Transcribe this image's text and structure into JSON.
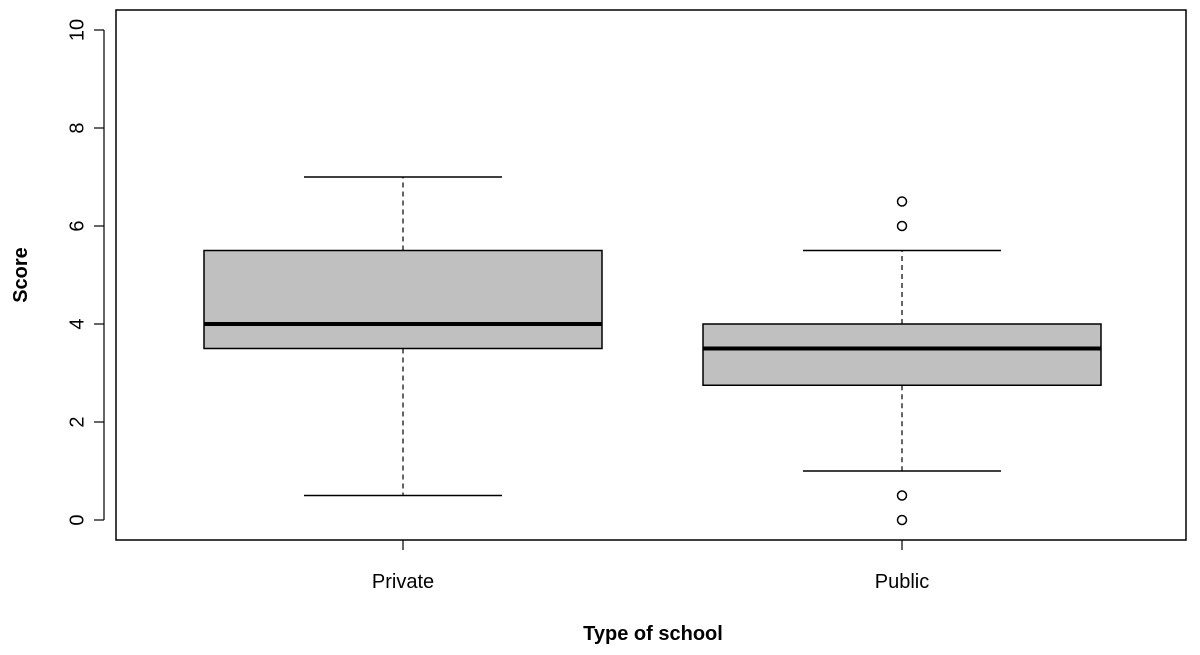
{
  "chart_data": {
    "type": "boxplot",
    "title": "",
    "xlabel": "Type of school",
    "ylabel": "Score",
    "ylim": [
      0,
      10
    ],
    "yticks": [
      0,
      2,
      4,
      6,
      8,
      10
    ],
    "grid": false,
    "box_fill": "#c0c0c0",
    "categories": [
      "Private",
      "Public"
    ],
    "boxes": [
      {
        "category": "Private",
        "whisker_low": 0.5,
        "q1": 3.5,
        "median": 4.0,
        "q3": 5.5,
        "whisker_high": 7.0,
        "outliers": []
      },
      {
        "category": "Public",
        "whisker_low": 1.0,
        "q1": 2.75,
        "median": 3.5,
        "q3": 4.0,
        "whisker_high": 5.5,
        "outliers": [
          0,
          0.5,
          6,
          6.5
        ]
      }
    ]
  }
}
